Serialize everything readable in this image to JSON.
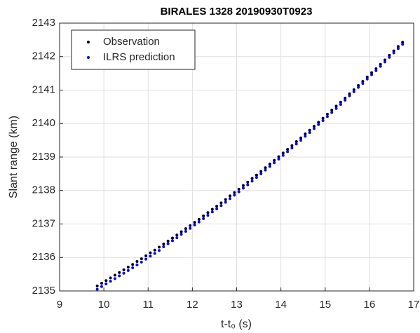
{
  "chart_data": {
    "type": "scatter",
    "title": "BIRALES 1328 20190930T0923",
    "x_label": "t-t₀ (s)",
    "y_label": "Slant range (km)",
    "x": [
      9.85,
      9.95,
      10.05,
      10.15,
      10.25,
      10.35,
      10.45,
      10.55,
      10.65,
      10.75,
      10.85,
      10.95,
      11.05,
      11.15,
      11.25,
      11.35,
      11.45,
      11.55,
      11.65,
      11.75,
      11.85,
      11.95,
      12.05,
      12.15,
      12.25,
      12.35,
      12.45,
      12.55,
      12.65,
      12.75,
      12.85,
      12.95,
      13.05,
      13.15,
      13.25,
      13.35,
      13.45,
      13.55,
      13.65,
      13.75,
      13.85,
      13.95,
      14.05,
      14.15,
      14.25,
      14.35,
      14.45,
      14.55,
      14.65,
      14.75,
      14.85,
      14.95,
      15.05,
      15.15,
      15.25,
      15.35,
      15.45,
      15.55,
      15.65,
      15.75,
      15.85,
      15.95,
      16.05,
      16.15,
      16.25,
      16.35,
      16.45,
      16.55,
      16.65,
      16.75
    ],
    "series": [
      {
        "name": "Observation",
        "color": "#000000",
        "values": [
          2135.15,
          2135.23,
          2135.31,
          2135.39,
          2135.47,
          2135.55,
          2135.63,
          2135.71,
          2135.79,
          2135.88,
          2135.96,
          2136.05,
          2136.14,
          2136.22,
          2136.31,
          2136.4,
          2136.49,
          2136.58,
          2136.67,
          2136.77,
          2136.86,
          2136.95,
          2137.05,
          2137.14,
          2137.24,
          2137.34,
          2137.44,
          2137.53,
          2137.63,
          2137.73,
          2137.84,
          2137.94,
          2138.04,
          2138.15,
          2138.25,
          2138.36,
          2138.46,
          2138.57,
          2138.68,
          2138.79,
          2138.9,
          2139.01,
          2139.12,
          2139.23,
          2139.34,
          2139.46,
          2139.57,
          2139.69,
          2139.8,
          2139.92,
          2140.04,
          2140.16,
          2140.28,
          2140.4,
          2140.52,
          2140.64,
          2140.76,
          2140.89,
          2141.01,
          2141.14,
          2141.26,
          2141.39,
          2141.52,
          2141.64,
          2141.77,
          2141.9,
          2142.04,
          2142.17,
          2142.3,
          2142.43
        ]
      },
      {
        "name": "ILRS prediction",
        "color": "#0000ff",
        "values": [
          2135.05,
          2135.13,
          2135.21,
          2135.29,
          2135.37,
          2135.45,
          2135.53,
          2135.61,
          2135.69,
          2135.78,
          2135.86,
          2135.95,
          2136.04,
          2136.12,
          2136.21,
          2136.32,
          2136.41,
          2136.5,
          2136.59,
          2136.69,
          2136.78,
          2136.87,
          2136.97,
          2137.06,
          2137.16,
          2137.26,
          2137.36,
          2137.45,
          2137.55,
          2137.65,
          2137.76,
          2137.86,
          2137.96,
          2138.07,
          2138.17,
          2138.28,
          2138.39,
          2138.5,
          2138.61,
          2138.72,
          2138.83,
          2138.94,
          2139.05,
          2139.16,
          2139.27,
          2139.39,
          2139.5,
          2139.62,
          2139.73,
          2139.85,
          2139.97,
          2140.09,
          2140.21,
          2140.33,
          2140.45,
          2140.57,
          2140.7,
          2140.83,
          2140.95,
          2141.08,
          2141.2,
          2141.33,
          2141.46,
          2141.58,
          2141.71,
          2141.84,
          2141.98,
          2142.11,
          2142.24,
          2142.37
        ]
      }
    ],
    "xlim": [
      9,
      17
    ],
    "xticks": [
      9,
      10,
      11,
      12,
      13,
      14,
      15,
      16,
      17
    ],
    "ylim": [
      2135,
      2143
    ],
    "yticks": [
      2135,
      2136,
      2137,
      2138,
      2139,
      2140,
      2141,
      2142,
      2143
    ],
    "grid": true,
    "legend": "upper left"
  }
}
